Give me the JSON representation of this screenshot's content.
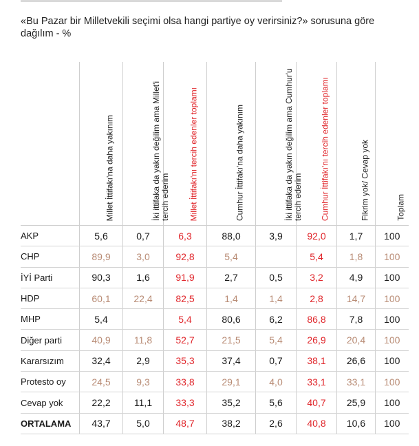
{
  "title": "«Bu Pazar bir Milletvekili seçimi olsa hangi partiye oy verirsiniz?» sorusuna göre dağılım - %",
  "chart_data": {
    "type": "table",
    "columns": [
      {
        "label": "Millet İttifakı'na daha yakınım",
        "highlight": false
      },
      {
        "label": "İki ittifaka da yakın değilim ama Millet'i tercih ederim",
        "highlight": false
      },
      {
        "label": "Millet İttifakı'nı tercih edenler toplamı",
        "highlight": true
      },
      {
        "label": "Cumhur İttifakı'na daha yakınım",
        "highlight": false
      },
      {
        "label": "İki ittifaka da yakın değilim ama Cumhur'u tercih ederim",
        "highlight": false
      },
      {
        "label": "Cumhur İttifakı'nı tercih edenler toplamı",
        "highlight": true
      },
      {
        "label": "Fikrim yok/ Cevap yok",
        "highlight": false
      },
      {
        "label": "Toplam",
        "highlight": false
      }
    ],
    "rows": [
      {
        "name": "AKP",
        "dim": false,
        "values": [
          "5,6",
          "0,7",
          "6,3",
          "88,0",
          "3,9",
          "92,0",
          "1,7",
          "100"
        ]
      },
      {
        "name": "CHP",
        "dim": true,
        "values": [
          "89,9",
          "3,0",
          "92,8",
          "5,4",
          "",
          "5,4",
          "1,8",
          "100"
        ]
      },
      {
        "name": "İYİ Parti",
        "dim": false,
        "values": [
          "90,3",
          "1,6",
          "91,9",
          "2,7",
          "0,5",
          "3,2",
          "4,9",
          "100"
        ]
      },
      {
        "name": "HDP",
        "dim": true,
        "values": [
          "60,1",
          "22,4",
          "82,5",
          "1,4",
          "1,4",
          "2,8",
          "14,7",
          "100"
        ]
      },
      {
        "name": "MHP",
        "dim": false,
        "values": [
          "5,4",
          "",
          "5,4",
          "80,6",
          "6,2",
          "86,8",
          "7,8",
          "100"
        ]
      },
      {
        "name": "Diğer parti",
        "dim": true,
        "values": [
          "40,9",
          "11,8",
          "52,7",
          "21,5",
          "5,4",
          "26,9",
          "20,4",
          "100"
        ]
      },
      {
        "name": "Kararsızım",
        "dim": false,
        "values": [
          "32,4",
          "2,9",
          "35,3",
          "37,4",
          "0,7",
          "38,1",
          "26,6",
          "100"
        ]
      },
      {
        "name": "Protesto oy",
        "dim": true,
        "values": [
          "24,5",
          "9,3",
          "33,8",
          "29,1",
          "4,0",
          "33,1",
          "33,1",
          "100"
        ]
      },
      {
        "name": "Cevap yok",
        "dim": false,
        "values": [
          "22,2",
          "11,1",
          "33,3",
          "35,2",
          "5,6",
          "40,7",
          "25,9",
          "100"
        ]
      },
      {
        "name": "ORTALAMA",
        "dim": false,
        "total": true,
        "values": [
          "43,7",
          "5,0",
          "48,7",
          "38,2",
          "2,6",
          "40,8",
          "10,6",
          "100"
        ]
      }
    ],
    "colors": {
      "highlight": "#e0262b",
      "dim": "#b88b74",
      "text": "#1a1a1a"
    }
  }
}
